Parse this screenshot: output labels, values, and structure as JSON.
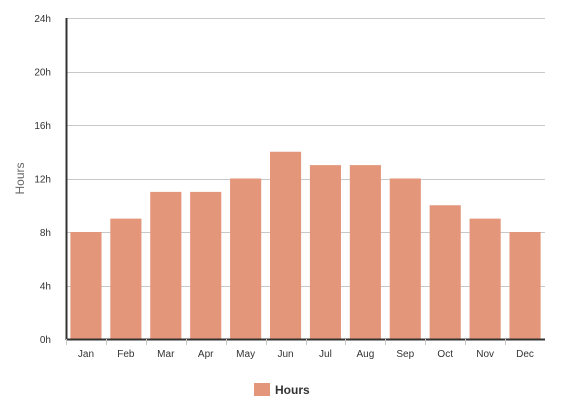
{
  "chart_data": {
    "type": "bar",
    "categories": [
      "Jan",
      "Feb",
      "Mar",
      "Apr",
      "May",
      "Jun",
      "Jul",
      "Aug",
      "Sep",
      "Oct",
      "Nov",
      "Dec"
    ],
    "series": [
      {
        "name": "Hours",
        "values": [
          8,
          9,
          11,
          11,
          12,
          14,
          13,
          13,
          12,
          10,
          9,
          8
        ],
        "color": "#e4967a"
      }
    ],
    "title": "",
    "xlabel": "",
    "ylabel": "Hours",
    "ylim": [
      0,
      24
    ],
    "y_ticks": [
      "0h",
      "4h",
      "8h",
      "12h",
      "16h",
      "20h",
      "24h"
    ],
    "y_tick_values": [
      0,
      4,
      8,
      12,
      16,
      20,
      24
    ],
    "grid": true,
    "legend_position": "bottom-center"
  }
}
